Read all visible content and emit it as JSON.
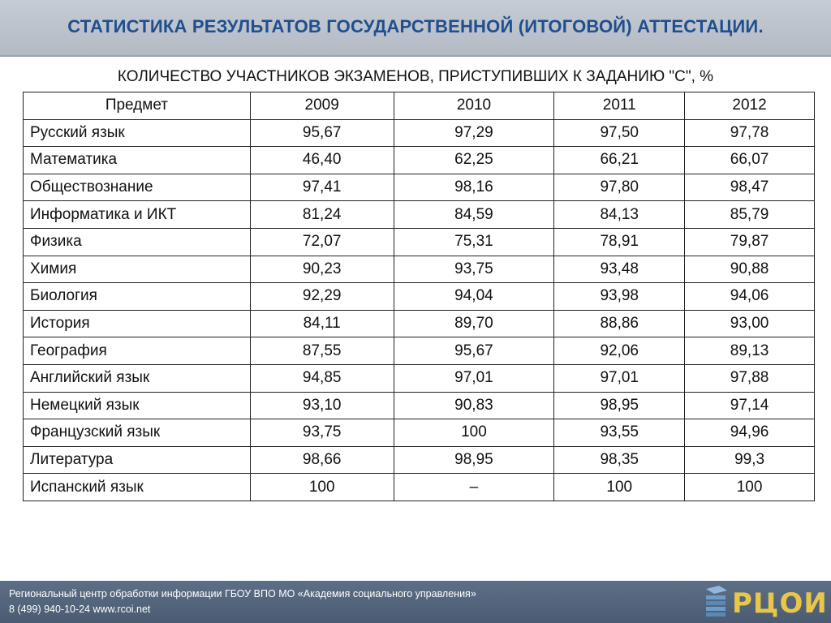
{
  "header": {
    "title": "СТАТИСТИКА РЕЗУЛЬТАТОВ ГОСУДАРСТВЕННОЙ (ИТОГОВОЙ) АТТЕСТАЦИИ."
  },
  "subtitle": "КОЛИЧЕСТВО УЧАСТНИКОВ ЭКЗАМЕНОВ, ПРИСТУПИВШИХ К ЗАДАНИЮ \"С\", %",
  "table": {
    "headers": [
      "Предмет",
      "2009",
      "2010",
      "2011",
      "2012"
    ],
    "rows": [
      [
        "Русский язык",
        "95,67",
        "97,29",
        "97,50",
        "97,78"
      ],
      [
        "Математика",
        "46,40",
        "62,25",
        "66,21",
        "66,07"
      ],
      [
        "Обществознание",
        "97,41",
        "98,16",
        "97,80",
        "98,47"
      ],
      [
        "Информатика и ИКТ",
        "81,24",
        "84,59",
        "84,13",
        "85,79"
      ],
      [
        "Физика",
        "72,07",
        "75,31",
        "78,91",
        "79,87"
      ],
      [
        "Химия",
        "90,23",
        "93,75",
        "93,48",
        "90,88"
      ],
      [
        "Биология",
        "92,29",
        "94,04",
        "93,98",
        "94,06"
      ],
      [
        "История",
        "84,11",
        "89,70",
        "88,86",
        "93,00"
      ],
      [
        "География",
        "87,55",
        "95,67",
        "92,06",
        "89,13"
      ],
      [
        "Английский язык",
        "94,85",
        "97,01",
        "97,01",
        "97,88"
      ],
      [
        "Немецкий язык",
        "93,10",
        "90,83",
        "98,95",
        "97,14"
      ],
      [
        "Французский язык",
        "93,75",
        "100",
        "93,55",
        "94,96"
      ],
      [
        "Литература",
        "98,66",
        "98,95",
        "98,35",
        "99,3"
      ],
      [
        "Испанский язык",
        "100",
        "–",
        "100",
        "100"
      ]
    ]
  },
  "footer": {
    "line1": "Региональный центр обработки информации ГБОУ ВПО МО «Академия социального управления»",
    "line2": "8 (499) 940-10-24 www.rcoi.net",
    "logo_text": "РЦОИ",
    "logo_icon": "stacked-blocks-icon"
  },
  "colors": {
    "title": "#1f4f8f",
    "header_bg": "#b8bfc8",
    "footer_bg": "#54657c",
    "logo": "#e9c54a"
  }
}
